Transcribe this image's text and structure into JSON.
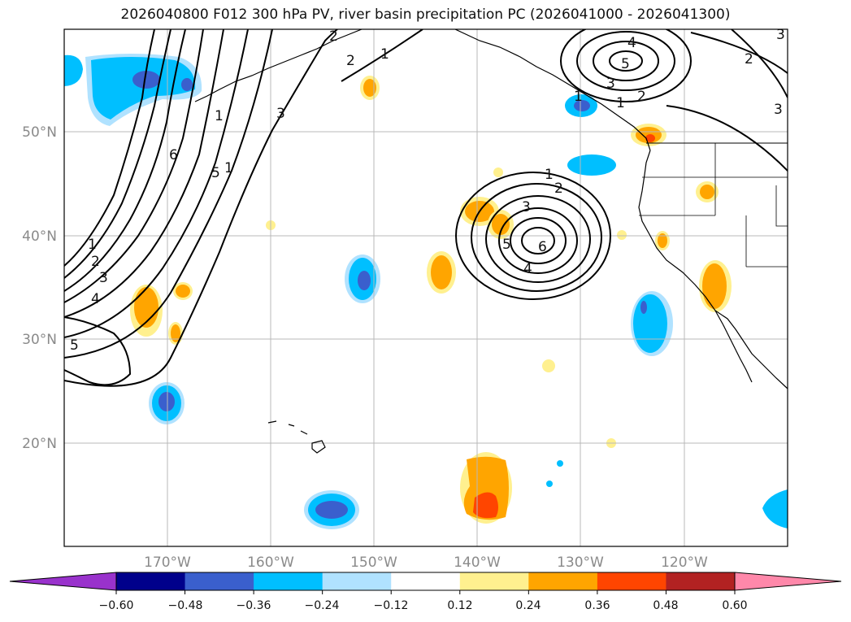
{
  "title": "2026040800 F012 300 hPa PV, river basin precipitation PC (2026041000 - 2026041300)",
  "map": {
    "lon_range": [
      -180,
      -110
    ],
    "lat_range": [
      10,
      60
    ],
    "lat_ticks": [
      {
        "value": 20,
        "label": "20°N"
      },
      {
        "value": 30,
        "label": "30°N"
      },
      {
        "value": 40,
        "label": "40°N"
      },
      {
        "value": 50,
        "label": "50°N"
      }
    ],
    "lon_ticks": [
      {
        "value": -170,
        "label": "170°W"
      },
      {
        "value": -160,
        "label": "160°W"
      },
      {
        "value": -150,
        "label": "150°W"
      },
      {
        "value": -140,
        "label": "140°W"
      },
      {
        "value": -130,
        "label": "130°W"
      },
      {
        "value": -120,
        "label": "120°W"
      }
    ]
  },
  "colorbar": {
    "colors": [
      "#9932cc",
      "#00008b",
      "#3a5fcd",
      "#00bfff",
      "#b0e2ff",
      "#ffffff",
      "#fff08f",
      "#ffa500",
      "#ff4500",
      "#b22222",
      "#ff88aa"
    ],
    "tick_labels": [
      "−0.60",
      "−0.48",
      "−0.36",
      "−0.24",
      "−0.12",
      "0.12",
      "0.24",
      "0.36",
      "0.48",
      "0.60"
    ]
  },
  "contour_labels": {
    "west": [
      "1",
      "2",
      "3",
      "4",
      "5"
    ],
    "north": [
      "1",
      "2",
      "3",
      "6",
      "5",
      "1",
      "2",
      "1"
    ],
    "low": [
      "1",
      "2",
      "3",
      "5",
      "6",
      "4"
    ],
    "ne": [
      "4",
      "5",
      "3",
      "2",
      "1",
      "1",
      "2",
      "3",
      "3"
    ]
  },
  "colors": {
    "neg_light": "#b0e2ff",
    "neg_mid": "#00bfff",
    "neg_dark": "#3a5fcd",
    "pos_light": "#fff08f",
    "pos_mid": "#ffa500",
    "pos_dark": "#ff4500"
  }
}
